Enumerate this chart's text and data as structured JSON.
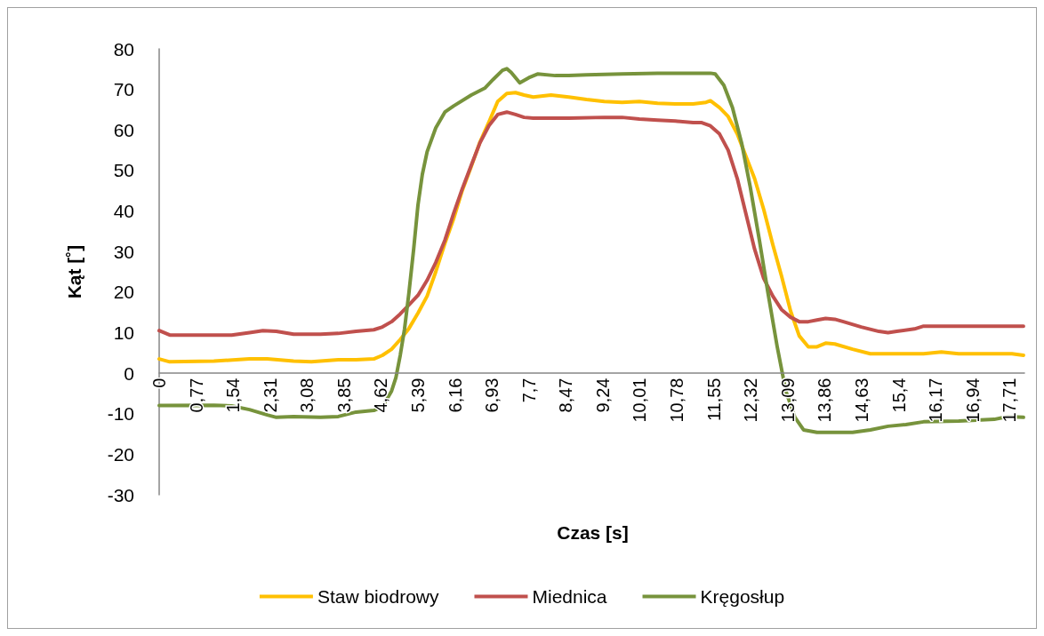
{
  "chart_data": {
    "type": "line",
    "xlabel": "Czas [s]",
    "ylabel": "Kąt [˚]",
    "xlim": [
      0,
      18.02
    ],
    "ylim": [
      -30,
      80
    ],
    "xticks": [
      0,
      {
        "value": 0.77,
        "label": "0,77"
      },
      {
        "value": 1.54,
        "label": "1,54"
      },
      {
        "value": 2.31,
        "label": "2,31"
      },
      {
        "value": 3.08,
        "label": "3,08"
      },
      {
        "value": 3.85,
        "label": "3,85"
      },
      {
        "value": 4.62,
        "label": "4,62"
      },
      {
        "value": 5.39,
        "label": "5,39"
      },
      {
        "value": 6.16,
        "label": "6,16"
      },
      {
        "value": 6.93,
        "label": "6,93"
      },
      {
        "value": 7.7,
        "label": "7,7"
      },
      {
        "value": 8.47,
        "label": "8,47"
      },
      {
        "value": 9.24,
        "label": "9,24"
      },
      {
        "value": 10.01,
        "label": "10,01"
      },
      {
        "value": 10.78,
        "label": "10,78"
      },
      {
        "value": 11.55,
        "label": "11,55"
      },
      {
        "value": 12.32,
        "label": "12,32"
      },
      {
        "value": 13.09,
        "label": "13,09"
      },
      {
        "value": 13.86,
        "label": "13,86"
      },
      {
        "value": 14.63,
        "label": "14,63"
      },
      {
        "value": 15.4,
        "label": "15,4"
      },
      {
        "value": 16.17,
        "label": "16,17"
      },
      {
        "value": 16.94,
        "label": "16,94"
      },
      {
        "value": 17.71,
        "label": "17,71"
      }
    ],
    "yticks": [
      -30,
      -20,
      -10,
      0,
      10,
      20,
      30,
      40,
      50,
      60,
      70,
      80
    ],
    "grid": false,
    "legend": "bottom",
    "marker": "none",
    "line_style": "solid",
    "series": [
      {
        "name": "Staw biodrowy",
        "color": "#ffc000",
        "x": [
          0,
          0.22,
          1.14,
          1.88,
          2.25,
          2.8,
          3.17,
          3.73,
          4.1,
          4.47,
          4.65,
          4.84,
          5.02,
          5.2,
          5.39,
          5.58,
          5.76,
          5.95,
          6.13,
          6.31,
          6.5,
          6.68,
          6.87,
          7.05,
          7.24,
          7.42,
          7.6,
          7.79,
          8.16,
          8.53,
          8.9,
          9.27,
          9.64,
          10.0,
          10.38,
          10.75,
          11.12,
          11.39,
          11.48,
          11.67,
          11.85,
          12.04,
          12.22,
          12.4,
          12.59,
          12.78,
          12.96,
          13.15,
          13.33,
          13.52,
          13.7,
          13.88,
          14.07,
          14.44,
          14.81,
          15.18,
          15.55,
          15.92,
          16.29,
          16.65,
          17.02,
          17.39,
          17.76,
          18.0
        ],
        "values": [
          3.5,
          2.8,
          3,
          3.5,
          3.5,
          3,
          2.8,
          3.3,
          3.3,
          3.5,
          4.4,
          5.9,
          8.3,
          11,
          14.8,
          19,
          25,
          32,
          38,
          45,
          51,
          57,
          62,
          67,
          69,
          69.2,
          68.6,
          68.1,
          68.6,
          68.1,
          67.5,
          67,
          66.8,
          67,
          66.6,
          66.4,
          66.4,
          66.8,
          67.2,
          65.5,
          63.3,
          59,
          53.5,
          48,
          40.4,
          31.7,
          24,
          15.3,
          9.2,
          6.5,
          6.5,
          7.4,
          7.2,
          5.9,
          4.8,
          4.8,
          4.8,
          4.8,
          5.2,
          4.8,
          4.8,
          4.8,
          4.8,
          4.4
        ]
      },
      {
        "name": "Miednica",
        "color": "#c0504d",
        "x": [
          0,
          0.22,
          1.14,
          1.51,
          1.88,
          2.16,
          2.44,
          2.8,
          3.36,
          3.73,
          4.1,
          4.47,
          4.65,
          4.84,
          5.02,
          5.2,
          5.39,
          5.58,
          5.76,
          5.95,
          6.13,
          6.31,
          6.5,
          6.68,
          6.87,
          7.05,
          7.24,
          7.42,
          7.6,
          7.79,
          8.53,
          9.27,
          9.64,
          10.0,
          10.38,
          10.75,
          11.12,
          11.3,
          11.48,
          11.67,
          11.85,
          12.04,
          12.22,
          12.4,
          12.59,
          12.78,
          12.96,
          13.15,
          13.33,
          13.52,
          13.7,
          13.88,
          14.07,
          14.25,
          14.62,
          14.99,
          15.18,
          15.36,
          15.73,
          15.92,
          16.65,
          17.39,
          18.0
        ],
        "values": [
          10.5,
          9.4,
          9.4,
          9.4,
          10,
          10.5,
          10.3,
          9.6,
          9.6,
          9.8,
          10.3,
          10.7,
          11.4,
          12.7,
          14.6,
          16.8,
          19.2,
          22.9,
          27.3,
          32.8,
          39.3,
          45.4,
          51.3,
          56.8,
          61.1,
          63.8,
          64.4,
          63.8,
          63.1,
          62.9,
          62.9,
          63.1,
          63.1,
          62.7,
          62.4,
          62.2,
          61.8,
          61.8,
          61,
          59,
          55,
          48,
          39.3,
          30.6,
          23.4,
          19,
          15.7,
          13.8,
          12.7,
          12.7,
          13.1,
          13.5,
          13.3,
          12.7,
          11.4,
          10.3,
          10,
          10.3,
          10.9,
          11.6,
          11.6,
          11.6,
          11.6
        ]
      },
      {
        "name": "Kręgosłup",
        "color": "#77933c",
        "x": [
          0,
          1.14,
          1.51,
          1.88,
          2.25,
          2.44,
          2.8,
          3.36,
          3.73,
          4.1,
          4.47,
          4.65,
          4.84,
          4.93,
          5.02,
          5.11,
          5.2,
          5.3,
          5.39,
          5.48,
          5.58,
          5.76,
          5.95,
          6.13,
          6.5,
          6.78,
          6.96,
          7.15,
          7.24,
          7.33,
          7.51,
          7.7,
          7.88,
          8.25,
          8.53,
          8.9,
          9.64,
          10.38,
          11.12,
          11.48,
          11.58,
          11.76,
          11.94,
          12.13,
          12.31,
          12.5,
          12.68,
          12.87,
          13.05,
          13.24,
          13.42,
          13.7,
          14.44,
          14.81,
          15.18,
          15.55,
          15.92,
          16.65,
          17.39,
          17.67,
          18.0
        ],
        "values": [
          -8,
          -7.9,
          -8.1,
          -9,
          -10.3,
          -10.9,
          -10.7,
          -10.9,
          -10.7,
          -9.6,
          -9.2,
          -8.3,
          -4.4,
          -1.1,
          4.4,
          10.9,
          19.7,
          30.6,
          41.5,
          49,
          54.6,
          60.5,
          64.4,
          65.9,
          68.6,
          70.3,
          72.5,
          74.7,
          75.1,
          74.2,
          71.6,
          72.9,
          73.8,
          73.4,
          73.4,
          73.6,
          73.8,
          74,
          74,
          74,
          73.8,
          71,
          65.5,
          56.8,
          45.9,
          32.8,
          19.7,
          6.6,
          -4.4,
          -10.9,
          -14,
          -14.6,
          -14.6,
          -14,
          -13.1,
          -12.7,
          -12,
          -11.8,
          -11.4,
          -10.7,
          -10.9
        ]
      }
    ]
  }
}
